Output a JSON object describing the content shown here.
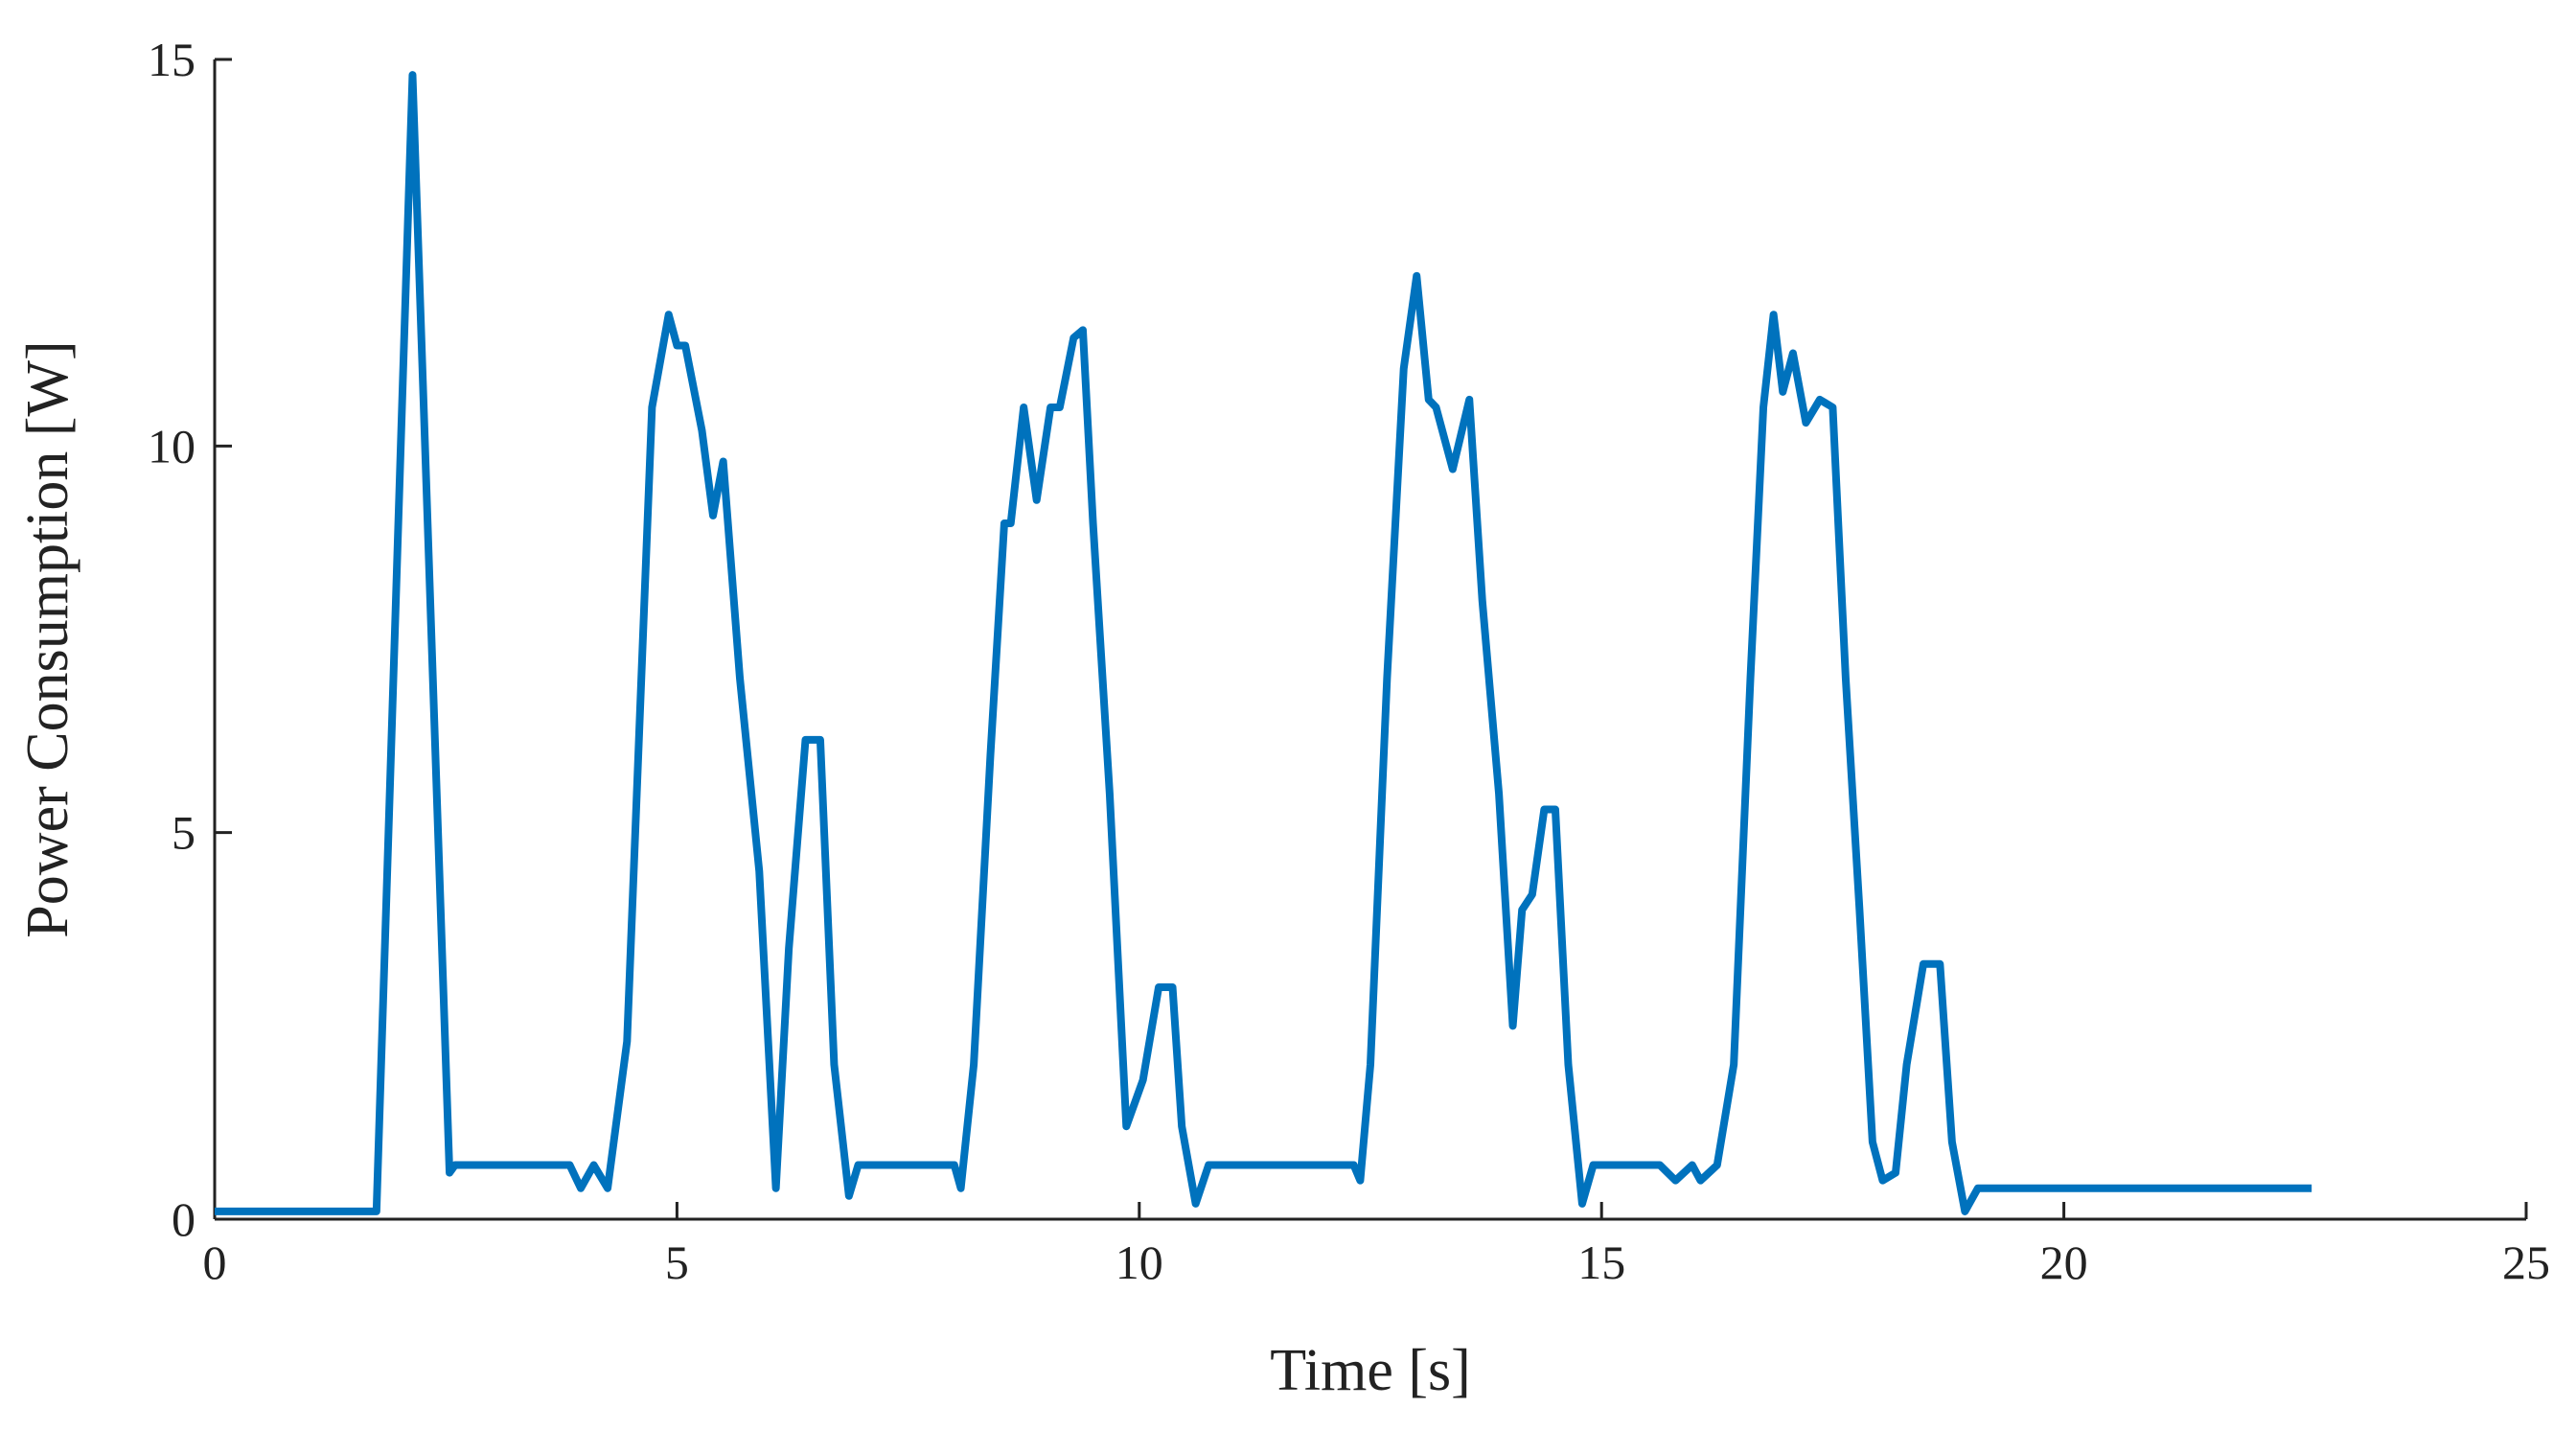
{
  "chart_data": {
    "type": "line",
    "xlabel": "Time [s]",
    "ylabel": "Power Consumption [W]",
    "xlim": [
      0,
      25
    ],
    "xticks": [
      0,
      5,
      10,
      15,
      20,
      25
    ],
    "ylim": [
      0,
      15
    ],
    "yticks": [
      0,
      5,
      10,
      15
    ],
    "grid": false,
    "series": [
      {
        "name": "Power",
        "color": "#0072bd",
        "x": [
          0,
          1.75,
          2.14,
          2.54,
          2.6,
          3.84,
          3.96,
          4.1,
          4.25,
          4.46,
          4.73,
          4.91,
          5.0,
          5.09,
          5.27,
          5.39,
          5.5,
          5.68,
          5.89,
          6.07,
          6.21,
          6.39,
          6.55,
          6.7,
          6.86,
          6.96,
          8.0,
          8.07,
          8.21,
          8.39,
          8.54,
          8.61,
          8.75,
          8.89,
          9.04,
          9.14,
          9.29,
          9.39,
          9.5,
          9.68,
          9.86,
          10.04,
          10.21,
          10.36,
          10.46,
          10.61,
          10.75,
          12.32,
          12.39,
          12.5,
          12.68,
          12.86,
          13.0,
          13.13,
          13.21,
          13.39,
          13.57,
          13.71,
          13.89,
          14.04,
          14.14,
          14.25,
          14.38,
          14.5,
          14.64,
          14.79,
          14.91,
          15.63,
          15.8,
          15.98,
          16.07,
          16.25,
          16.43,
          16.61,
          16.75,
          16.86,
          16.96,
          17.07,
          17.21,
          17.36,
          17.5,
          17.64,
          17.79,
          17.93,
          18.04,
          18.18,
          18.3,
          18.48,
          18.66,
          18.79,
          18.93,
          19.07,
          22.68
        ],
        "values": [
          0.1,
          0.1,
          14.8,
          0.6,
          0.7,
          0.7,
          0.4,
          0.7,
          0.4,
          2.3,
          10.5,
          11.7,
          11.3,
          11.3,
          10.2,
          9.1,
          9.8,
          7,
          4.5,
          0.4,
          3.5,
          6.2,
          6.2,
          2,
          0.3,
          0.7,
          0.7,
          0.4,
          2,
          6,
          9,
          9,
          10.5,
          9.3,
          10.5,
          10.5,
          11.4,
          11.5,
          9,
          5.5,
          1.2,
          1.8,
          3,
          3,
          1.2,
          0.2,
          0.7,
          0.7,
          0.5,
          2,
          7,
          11,
          12.2,
          10.6,
          10.5,
          9.7,
          10.6,
          8,
          5.5,
          2.5,
          4,
          4.2,
          5.3,
          5.3,
          2,
          0.2,
          0.7,
          0.7,
          0.5,
          0.7,
          0.5,
          0.7,
          2,
          7,
          10.5,
          11.7,
          10.7,
          11.2,
          10.3,
          10.6,
          10.5,
          7,
          4,
          1,
          0.5,
          0.6,
          2,
          3.3,
          3.3,
          1,
          0.1,
          0.4,
          0.4
        ]
      }
    ]
  }
}
